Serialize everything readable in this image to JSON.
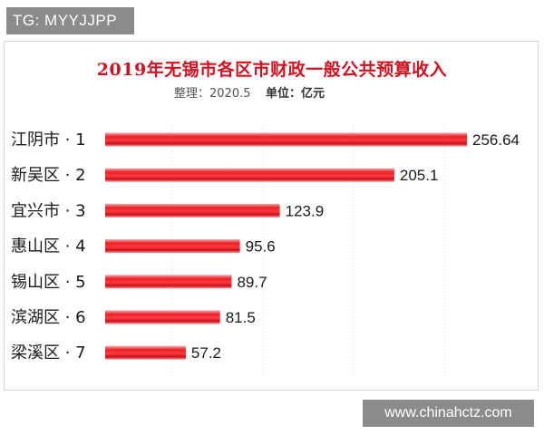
{
  "top_tag": "TG: MYYJJPP",
  "watermark": "www.chinahctz.com",
  "chart_data": {
    "type": "bar",
    "orientation": "horizontal",
    "title": "2019年无锡市各区市财政一般公共预算收入",
    "subtitle_date": "整理：2020.5",
    "unit": "单位：亿元",
    "categories": [
      "江阴市 · 1",
      "新吴区 · 2",
      "宜兴市 · 3",
      "惠山区 · 4",
      "锡山区 · 5",
      "滨湖区 · 6",
      "梁溪区 · 7"
    ],
    "values": [
      256.64,
      205.1,
      123.9,
      95.6,
      89.7,
      81.5,
      57.2
    ],
    "value_labels": [
      "256.64",
      "205.1",
      "123.9",
      "95.6",
      "89.7",
      "81.5",
      "57.2"
    ],
    "xlim": [
      0,
      256.64
    ],
    "grid": "vertical dotted",
    "bar_color": "#e8141c"
  }
}
